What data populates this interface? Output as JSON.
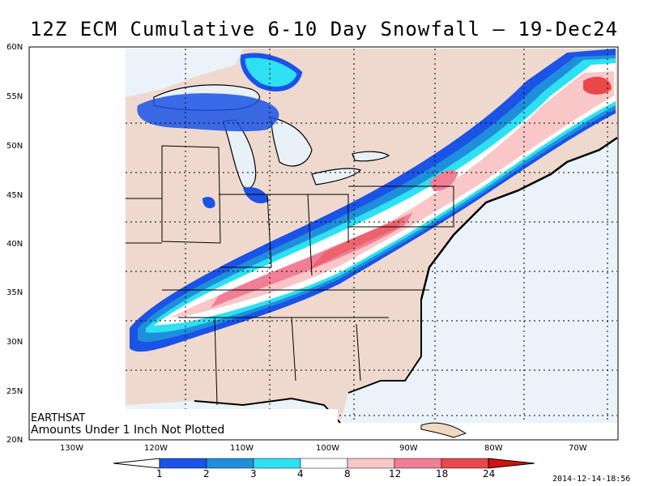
{
  "title": "12Z ECM Cumulative 6-10 Day Snowfall – 19-Dec24",
  "lat_labels": [
    "60N",
    "55N",
    "50N",
    "45N",
    "40N",
    "35N",
    "30N",
    "25N",
    "20N"
  ],
  "lon_labels": [
    "130W",
    "120W",
    "110W",
    "100W",
    "90W",
    "80W",
    "70W"
  ],
  "source": "EARTHSAT",
  "note": "Amounts Under 1 Inch Not Plotted",
  "timestamp": "2014-12-14-18:56",
  "colorbar": {
    "labels": [
      "1",
      "2",
      "3",
      "4",
      "8",
      "12",
      "18",
      "24"
    ],
    "colors": [
      "#ffffff",
      "#1a53e6",
      "#1f8fdc",
      "#2ee0f2",
      "#ffffff",
      "#f9c7c7",
      "#f07f95",
      "#e84848",
      "#d41212"
    ]
  },
  "colors": {
    "land": "#efd9ce",
    "water": "#eaf3fa",
    "lake": "#e8f0f8"
  }
}
